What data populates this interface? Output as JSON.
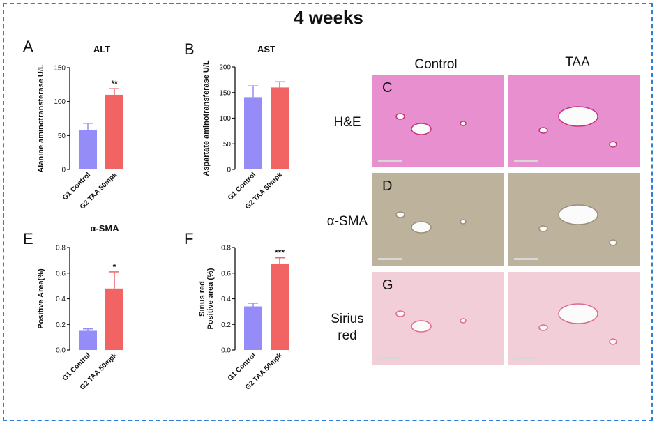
{
  "figure": {
    "title": "4 weeks",
    "colors": {
      "frame": "#2f7fd6",
      "g1": "#968cf7",
      "g2": "#f26464"
    }
  },
  "chart_data": [
    {
      "panel": "A",
      "type": "bar",
      "title": "ALT",
      "ylabel": "Alanine aminotransferase U/L",
      "categories": [
        "G1 Control",
        "G2 TAA 50mpk"
      ],
      "values": [
        58,
        110
      ],
      "errors": [
        10,
        9
      ],
      "significance": [
        "",
        "**"
      ],
      "ylim": [
        0,
        150
      ],
      "yticks": [
        "0",
        "50",
        "100",
        "150"
      ],
      "ytick_values": [
        0,
        50,
        100,
        150
      ]
    },
    {
      "panel": "B",
      "type": "bar",
      "title": "AST",
      "ylabel": "Aspartate aminotransferase U/L",
      "categories": [
        "G1 Control",
        "G2 TAA 50mpk"
      ],
      "values": [
        141,
        160
      ],
      "errors": [
        22,
        11
      ],
      "significance": [
        "",
        ""
      ],
      "ylim": [
        0,
        200
      ],
      "yticks": [
        "0",
        "50",
        "100",
        "150",
        "200"
      ],
      "ytick_values": [
        0,
        50,
        100,
        150,
        200
      ]
    },
    {
      "panel": "E",
      "type": "bar",
      "title": "α-SMA",
      "ylabel": "Positive Area(%)",
      "categories": [
        "G1 Control",
        "G2 TAA 50mpk"
      ],
      "values": [
        0.15,
        0.48
      ],
      "errors": [
        0.015,
        0.13
      ],
      "significance": [
        "",
        "*"
      ],
      "ylim": [
        0,
        0.8
      ],
      "yticks": [
        "0.0",
        "0.2",
        "0.4",
        "0.6",
        "0.8"
      ],
      "ytick_values": [
        0,
        0.2,
        0.4,
        0.6,
        0.8
      ]
    },
    {
      "panel": "F",
      "type": "bar",
      "title": "",
      "ylabel": "Sirius red\nPositive area (%)",
      "categories": [
        "G1 Control",
        "G2 TAA 50mpk"
      ],
      "values": [
        0.34,
        0.67
      ],
      "errors": [
        0.025,
        0.05
      ],
      "significance": [
        "",
        "***"
      ],
      "ylim": [
        0,
        0.8
      ],
      "yticks": [
        "0.0",
        "0.2",
        "0.4",
        "0.6",
        "0.8"
      ],
      "ytick_values": [
        0,
        0.2,
        0.4,
        0.6,
        0.8
      ]
    }
  ],
  "micrographs": {
    "columns": [
      "Control",
      "TAA"
    ],
    "rows": [
      {
        "label": "H&E",
        "letter": "C",
        "tint": "#e78fcf"
      },
      {
        "label": "α-SMA",
        "letter": "D",
        "tint": "#bdb39d"
      },
      {
        "label": "Sirius\nred",
        "letter": "G",
        "tint": "#f2cfd8"
      }
    ]
  }
}
